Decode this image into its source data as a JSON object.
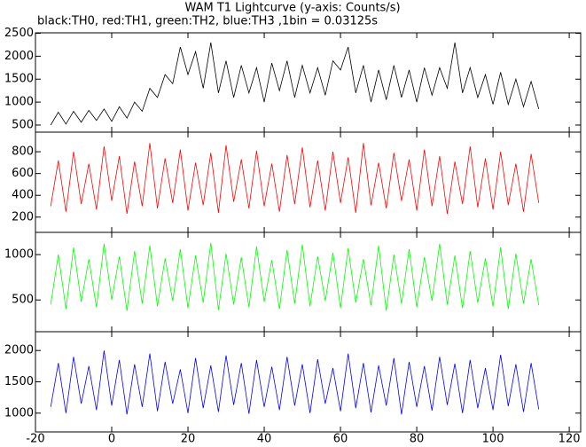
{
  "chart_data": {
    "type": "line",
    "title": "WAM T1 Lightcurve (y-axis: Counts/s)",
    "subtitle": "black:TH0, red:TH1, green:TH2, blue:TH3 ,1bin = 0.03125s",
    "xlim": [
      -20,
      123
    ],
    "xticks": [
      -20,
      0,
      20,
      40,
      60,
      80,
      100,
      120
    ],
    "x": [
      -16,
      -14,
      -12,
      -10,
      -8,
      -6,
      -4,
      -2,
      0,
      2,
      4,
      6,
      8,
      10,
      12,
      14,
      16,
      18,
      20,
      22,
      24,
      26,
      28,
      30,
      32,
      34,
      36,
      38,
      40,
      42,
      44,
      46,
      48,
      50,
      52,
      54,
      56,
      58,
      60,
      62,
      64,
      66,
      68,
      70,
      72,
      74,
      76,
      78,
      80,
      82,
      84,
      86,
      88,
      90,
      92,
      94,
      96,
      98,
      100,
      102,
      104,
      106,
      108,
      110,
      112
    ],
    "series": [
      {
        "color": "#000000",
        "ylim": [
          345,
          2510
        ],
        "yticks": [
          500,
          1000,
          1500,
          2000,
          2500
        ],
        "values": [
          500,
          780,
          520,
          800,
          560,
          820,
          600,
          850,
          580,
          900,
          650,
          1000,
          800,
          1300,
          1100,
          1600,
          1400,
          2200,
          1600,
          2100,
          1300,
          2300,
          1200,
          1900,
          1100,
          1800,
          1200,
          1750,
          1000,
          1850,
          1250,
          1900,
          1100,
          1800,
          1200,
          1750,
          1150,
          1900,
          1700,
          2200,
          1200,
          1800,
          1000,
          1700,
          1050,
          1800,
          1100,
          1700,
          1000,
          1750,
          1150,
          1750,
          1300,
          2300,
          1200,
          1750,
          1100,
          1600,
          950,
          1650,
          950,
          1500,
          900,
          1450,
          850
        ]
      },
      {
        "color": "#ff0000",
        "ylim": [
          60,
          980
        ],
        "yticks": [
          200,
          400,
          600,
          800
        ],
        "values": [
          300,
          720,
          250,
          800,
          320,
          690,
          270,
          850,
          350,
          760,
          230,
          710,
          300,
          880,
          280,
          740,
          330,
          820,
          260,
          700,
          310,
          790,
          240,
          860,
          340,
          730,
          280,
          810,
          300,
          690,
          250,
          770,
          320,
          840,
          290,
          720,
          260,
          800,
          330,
          750,
          240,
          880,
          310,
          700,
          280,
          790,
          350,
          730,
          260,
          820,
          300,
          760,
          230,
          710,
          320,
          850,
          290,
          740,
          270,
          800,
          310,
          690,
          250,
          780,
          330
        ]
      },
      {
        "color": "#00ff00",
        "ylim": [
          150,
          1245
        ],
        "yticks": [
          500,
          1000
        ],
        "values": [
          450,
          1000,
          400,
          1080,
          480,
          950,
          420,
          1120,
          500,
          980,
          380,
          1040,
          460,
          1100,
          430,
          960,
          490,
          1060,
          410,
          990,
          470,
          1130,
          390,
          1010,
          450,
          970,
          420,
          1090,
          480,
          940,
          400,
          1050,
          460,
          1110,
          430,
          980,
          490,
          1020,
          410,
          1070,
          470,
          950,
          440,
          1100,
          380,
          1000,
          460,
          1060,
          420,
          970,
          490,
          1120,
          450,
          990,
          410,
          1040,
          470,
          960,
          430,
          1080,
          400,
          1010,
          460,
          950,
          440
        ]
      },
      {
        "color": "#0000ff",
        "ylim": [
          700,
          2300
        ],
        "yticks": [
          1000,
          1500,
          2000
        ],
        "values": [
          1100,
          1800,
          1000,
          1900,
          1150,
          1750,
          1050,
          2000,
          1120,
          1850,
          980,
          1780,
          1100,
          1950,
          1030,
          1820,
          1150,
          1700,
          1000,
          1880,
          1080,
          1760,
          1020,
          1920,
          1130,
          1800,
          990,
          1850,
          1100,
          1740,
          1050,
          1900,
          1120,
          1780,
          1000,
          1860,
          1150,
          1720,
          1030,
          1950,
          1080,
          1800,
          1010,
          1760,
          1120,
          1880,
          980,
          1820,
          1100,
          1750,
          1040,
          1900,
          1130,
          1790,
          1000,
          1850,
          1080,
          1720,
          1050,
          1930,
          1110,
          1780,
          1020,
          1800,
          1060
        ]
      }
    ]
  }
}
